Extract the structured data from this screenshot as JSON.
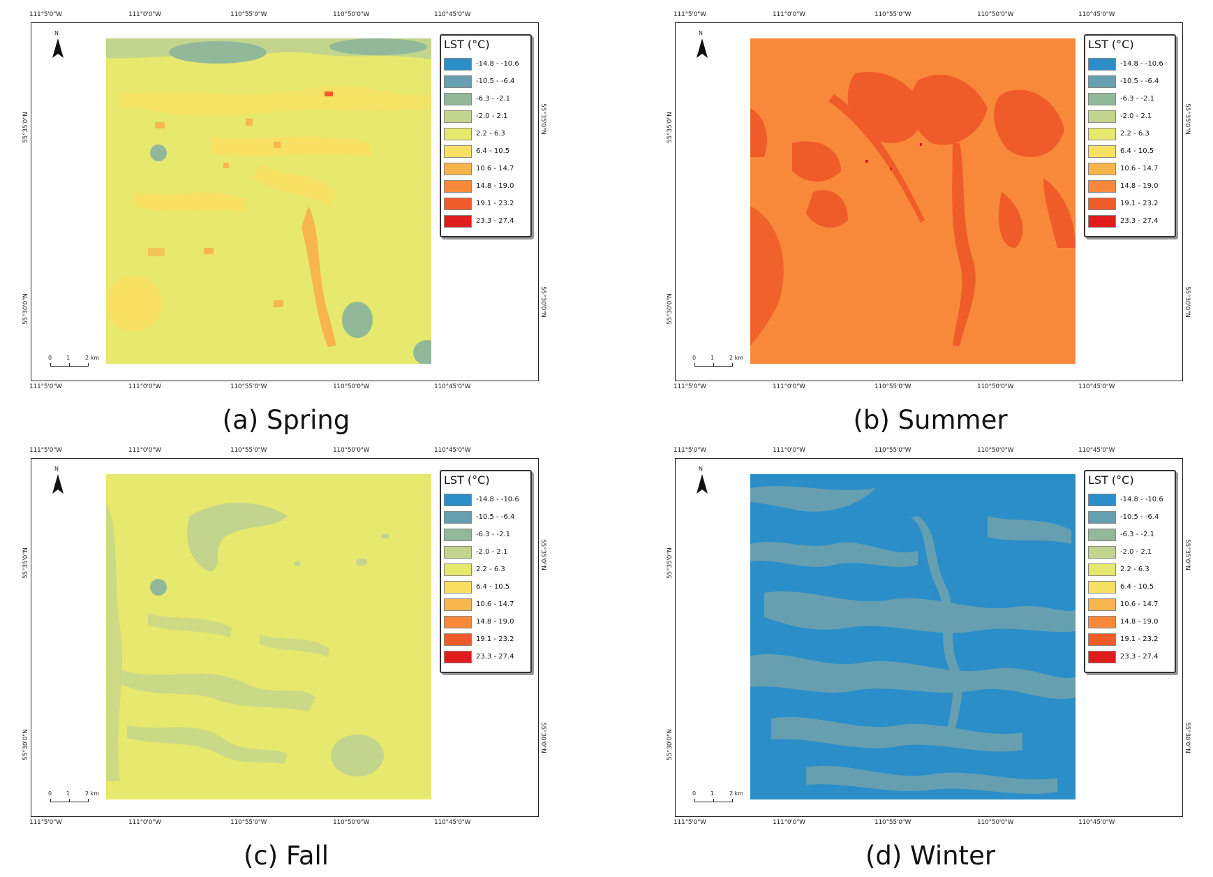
{
  "legend": {
    "title": "LST (°C)",
    "classes": [
      {
        "label": "-14.8 - -10.6",
        "color": "#2b8ec8"
      },
      {
        "label": "-10.5 - -6.4",
        "color": "#66a0b0"
      },
      {
        "label": "-6.3 - -2.1",
        "color": "#92b89a"
      },
      {
        "label": "-2.0 - 2.1",
        "color": "#c3d48c"
      },
      {
        "label": "2.2 - 6.3",
        "color": "#e7e86e"
      },
      {
        "label": "6.4 - 10.5",
        "color": "#f8e162"
      },
      {
        "label": "10.6 - 14.7",
        "color": "#f8b54e"
      },
      {
        "label": "14.8 - 19.0",
        "color": "#f8893a"
      },
      {
        "label": "19.1 - 23.2",
        "color": "#f05b2a"
      },
      {
        "label": "23.3 - 27.4",
        "color": "#e01c1c"
      }
    ]
  },
  "axes": {
    "top_ticks": [
      "111°5'0\"W",
      "111°0'0\"W",
      "110°55'0\"W",
      "110°50'0\"W",
      "110°45'0\"W"
    ],
    "bottom_ticks": [
      "111°5'0\"W",
      "111°0'0\"W",
      "110°55'0\"W",
      "110°50'0\"W",
      "110°45'0\"W"
    ],
    "left_ticks": [
      "55°35'0\"N",
      "55°30'0\"N"
    ],
    "right_ticks": [
      "55°35'0\"N",
      "55°30'0\"N"
    ]
  },
  "north_arrow": {
    "label": "N"
  },
  "scale_bar": {
    "labels": [
      "0",
      "1",
      "2 km"
    ]
  },
  "maps": [
    {
      "caption": "(a) Spring",
      "base_color": "#e7e86e",
      "dominant_class": "2.2 - 6.3",
      "secondary_classes": [
        "6.4 - 10.5",
        "-2.0 - 2.1",
        "-6.3 - -2.1",
        "10.6 - 14.7"
      ]
    },
    {
      "caption": "(b) Summer",
      "base_color": "#f8893a",
      "dominant_class": "14.8 - 19.0",
      "secondary_classes": [
        "19.1 - 23.2",
        "23.3 - 27.4"
      ]
    },
    {
      "caption": "(c) Fall",
      "base_color": "#e7e86e",
      "dominant_class": "2.2 - 6.3",
      "secondary_classes": [
        "-2.0 - 2.1",
        "-6.3 - -2.1"
      ]
    },
    {
      "caption": "(d) Winter",
      "base_color": "#2b8ec8",
      "dominant_class": "-14.8 - -10.6",
      "secondary_classes": [
        "-10.5 - -6.4"
      ]
    }
  ]
}
